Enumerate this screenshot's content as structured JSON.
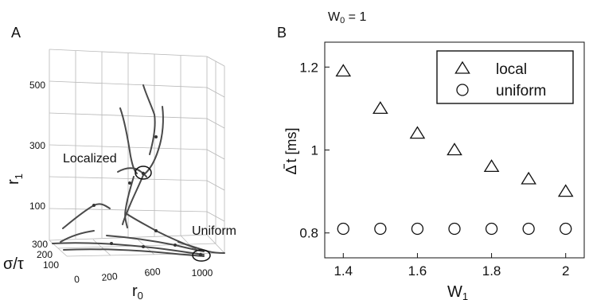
{
  "panel_a": {
    "label": "A",
    "axes": {
      "vertical_label": "r",
      "vertical_sub": "1",
      "vertical_ticks": [
        "500",
        "300",
        "100"
      ],
      "depth_label": "σ/τ",
      "depth_ticks": [
        "300",
        "200",
        "100"
      ],
      "horizontal_label": "r",
      "horizontal_sub": "0",
      "horizontal_ticks": [
        "0",
        "200",
        "600",
        "1000"
      ]
    },
    "annotations": {
      "localized": "Localized",
      "uniform": "Uniform"
    }
  },
  "chart_data": [
    {
      "type": "line",
      "panel": "A",
      "description_visible": "3D trajectories in (r0, σ/τ, r1) space",
      "title": "",
      "xlabel": "r0",
      "ylabel": "r1",
      "zlabel": "σ/τ"
    },
    {
      "type": "scatter",
      "panel": "B",
      "label": "B",
      "title": "W",
      "title_sub": "0",
      "title_suffix": " = 1",
      "xlabel": "W",
      "xlabel_sub": "1",
      "ylabel_prefix": "Δ",
      "ylabel_var": "t",
      "ylabel_unit": " [ms]",
      "xlim": [
        1.35,
        2.05
      ],
      "ylim": [
        0.74,
        1.26
      ],
      "xticks": [
        1.4,
        1.6,
        1.8,
        2.0
      ],
      "xtick_labels": [
        "1.4",
        "1.6",
        "1.8",
        "2"
      ],
      "yticks": [
        0.8,
        1.0,
        1.2
      ],
      "ytick_labels": [
        "0.8",
        "1",
        "1.2"
      ],
      "legend_position": "top-right",
      "series": [
        {
          "name": "local",
          "marker": "triangle",
          "x": [
            1.4,
            1.5,
            1.6,
            1.7,
            1.8,
            1.9,
            2.0
          ],
          "y": [
            1.19,
            1.1,
            1.04,
            1.0,
            0.96,
            0.93,
            0.9
          ]
        },
        {
          "name": "uniform",
          "marker": "circle",
          "x": [
            1.4,
            1.5,
            1.6,
            1.7,
            1.8,
            1.9,
            2.0
          ],
          "y": [
            0.81,
            0.81,
            0.81,
            0.81,
            0.81,
            0.81,
            0.81
          ]
        }
      ]
    }
  ]
}
